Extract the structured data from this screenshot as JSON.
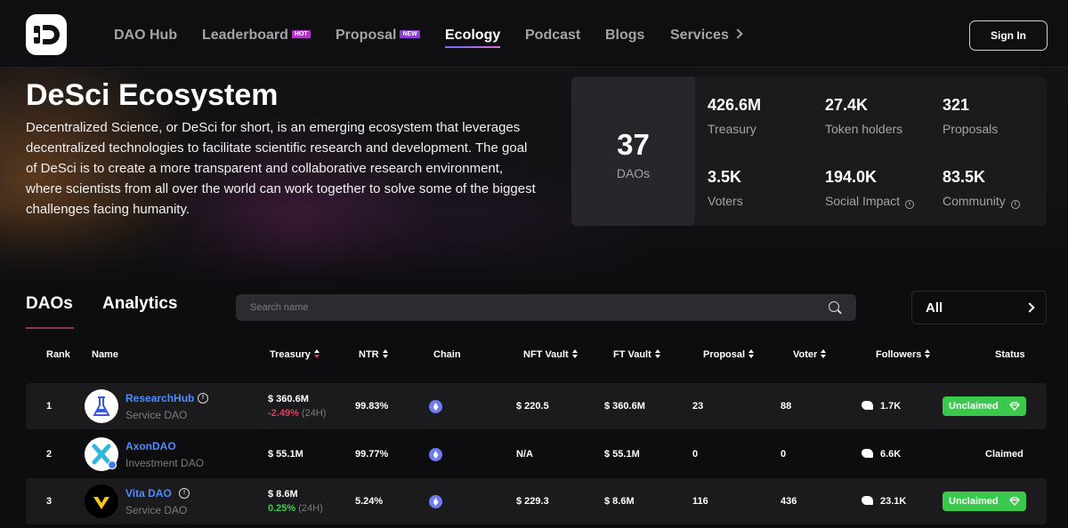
{
  "nav": {
    "items": [
      {
        "label": "DAO Hub"
      },
      {
        "label": "Leaderboard",
        "badge": "HOT"
      },
      {
        "label": "Proposal",
        "badge": "NEW"
      },
      {
        "label": "Ecology",
        "active": true
      },
      {
        "label": "Podcast"
      },
      {
        "label": "Blogs"
      },
      {
        "label": "Services"
      }
    ],
    "sign_in": "Sign In"
  },
  "hero": {
    "title": "DeSci Ecosystem",
    "description": "Decentralized Science, or DeSci for short, is an emerging ecosystem that leverages decentralized technologies to facilitate scientific research and development. The goal of DeSci is to create a more transparent and collaborative research environment, where scientists from all over the world can work together to solve some of the biggest challenges facing humanity."
  },
  "stats": {
    "daos": {
      "value": "37",
      "label": "DAOs"
    },
    "items": [
      {
        "value": "426.6M",
        "label": "Treasury"
      },
      {
        "value": "27.4K",
        "label": "Token holders"
      },
      {
        "value": "321",
        "label": "Proposals"
      },
      {
        "value": "3.5K",
        "label": "Voters"
      },
      {
        "value": "194.0K",
        "label": "Social Impact"
      },
      {
        "value": "83.5K",
        "label": "Community"
      }
    ]
  },
  "tabs": {
    "daos": "DAOs",
    "analytics": "Analytics"
  },
  "search": {
    "placeholder": "Search name"
  },
  "filter": {
    "selected": "All"
  },
  "table": {
    "headers": {
      "rank": "Rank",
      "name": "Name",
      "treasury": "Treasury",
      "ntr": "NTR",
      "chain": "Chain",
      "nft_vault": "NFT Vault",
      "ft_vault": "FT Vault",
      "proposal": "Proposal",
      "voter": "Voter",
      "followers": "Followers",
      "status": "Status"
    },
    "rows": [
      {
        "rank": "1",
        "name": "ResearchHub",
        "type": "Service DAO",
        "treasury": "$ 360.6M",
        "change": "-2.49%",
        "period": "(24H)",
        "ntr": "99.83%",
        "nft_vault": "$ 220.5",
        "ft_vault": "$ 360.6M",
        "proposal": "23",
        "voter": "88",
        "followers": "1.7K",
        "status": "Unclaimed"
      },
      {
        "rank": "2",
        "name": "AxonDAO",
        "type": "Investment DAO",
        "treasury": "$ 55.1M",
        "change": "",
        "period": "",
        "ntr": "99.77%",
        "nft_vault": "N/A",
        "ft_vault": "$ 55.1M",
        "proposal": "0",
        "voter": "0",
        "followers": "6.6K",
        "status": "Claimed"
      },
      {
        "rank": "3",
        "name": "Vita DAO",
        "type": "Service DAO",
        "treasury": "$ 8.6M",
        "change": "0.25%",
        "period": "(24H)",
        "ntr": "5.24%",
        "nft_vault": "$ 229.3",
        "ft_vault": "$ 8.6M",
        "proposal": "116",
        "voter": "436",
        "followers": "23.1K",
        "status": "Unclaimed"
      }
    ]
  }
}
